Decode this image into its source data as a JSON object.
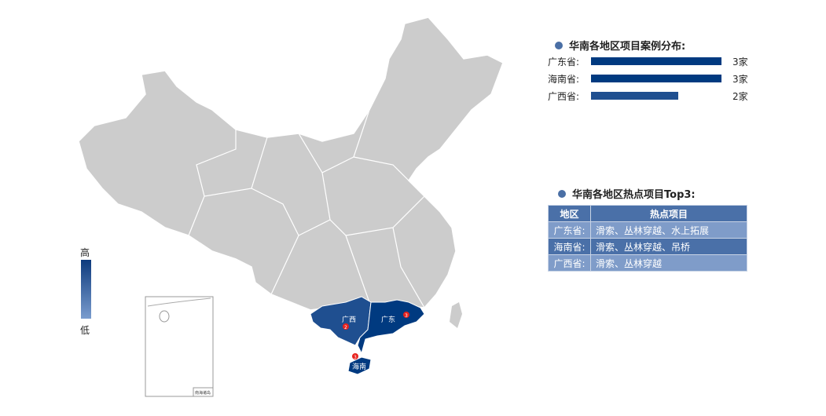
{
  "legend": {
    "high": "高",
    "low": "低",
    "color_high": "#0d3a7d",
    "color_low": "#7a9cce"
  },
  "map": {
    "base_color": "#cccccc",
    "regions": [
      {
        "name": "广西",
        "marker": "2",
        "color": "#1f4f90"
      },
      {
        "name": "广东",
        "marker": "3",
        "color": "#003a80"
      },
      {
        "name": "海南",
        "marker": "3",
        "color": "#003a80"
      }
    ],
    "inset_label": "南海诸岛",
    "marker_color": "#e8211c"
  },
  "distribution": {
    "title": "华南各地区项目案例分布:",
    "max": 3,
    "rows": [
      {
        "label": "广东省:",
        "value": 3,
        "value_text": "3家",
        "color": "#003a80"
      },
      {
        "label": "海南省:",
        "value": 3,
        "value_text": "3家",
        "color": "#003a80"
      },
      {
        "label": "广西省:",
        "value": 2,
        "value_text": "2家",
        "color": "#1f4f90"
      }
    ]
  },
  "top3": {
    "title": "华南各地区热点项目Top3:",
    "headers": [
      "地区",
      "热点项目"
    ],
    "rows": [
      [
        "广东省:",
        "滑索、丛林穿越、水上拓展"
      ],
      [
        "海南省:",
        "滑索、丛林穿越、吊桥"
      ],
      [
        "广西省:",
        "滑索、丛林穿越"
      ]
    ]
  }
}
